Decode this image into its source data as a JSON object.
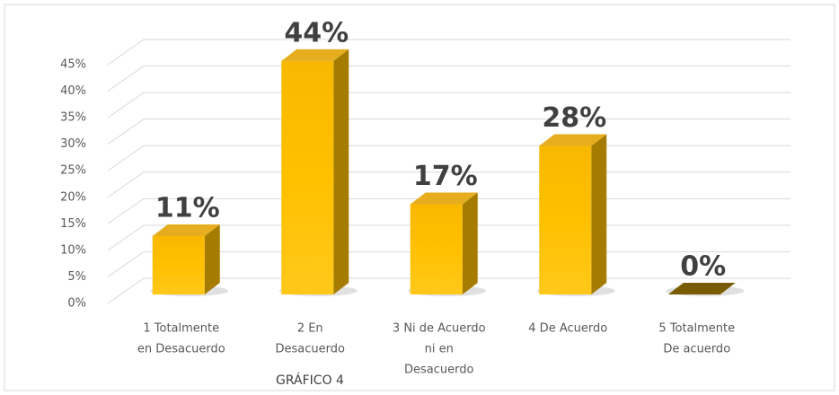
{
  "chart_data": {
    "type": "bar3d",
    "title": "GRÁFICO 4",
    "categories": [
      [
        "1 Totalmente",
        "en Desacuerdo"
      ],
      [
        "2 En",
        "Desacuerdo"
      ],
      [
        "3 Ni de Acuerdo",
        "ni  en",
        "Desacuerdo"
      ],
      [
        "4 De Acuerdo"
      ],
      [
        "5 Totalmente",
        "De acuerdo"
      ]
    ],
    "values": [
      11,
      44,
      17,
      28,
      0
    ],
    "value_labels": [
      "11%",
      "44%",
      "17%",
      "28%",
      "0%"
    ],
    "color": "#ffc000",
    "ylim": [
      0,
      45
    ],
    "yticks": [
      {
        "value": 0,
        "label": "0%"
      },
      {
        "value": 5,
        "label": "5%"
      },
      {
        "value": 10,
        "label": "10%"
      },
      {
        "value": 15,
        "label": "15%"
      },
      {
        "value": 20,
        "label": "20%"
      },
      {
        "value": 25,
        "label": "25%"
      },
      {
        "value": 30,
        "label": "30%"
      },
      {
        "value": 35,
        "label": "35%"
      },
      {
        "value": 40,
        "label": "40%"
      },
      {
        "value": 45,
        "label": "45%"
      }
    ],
    "grid": true
  }
}
